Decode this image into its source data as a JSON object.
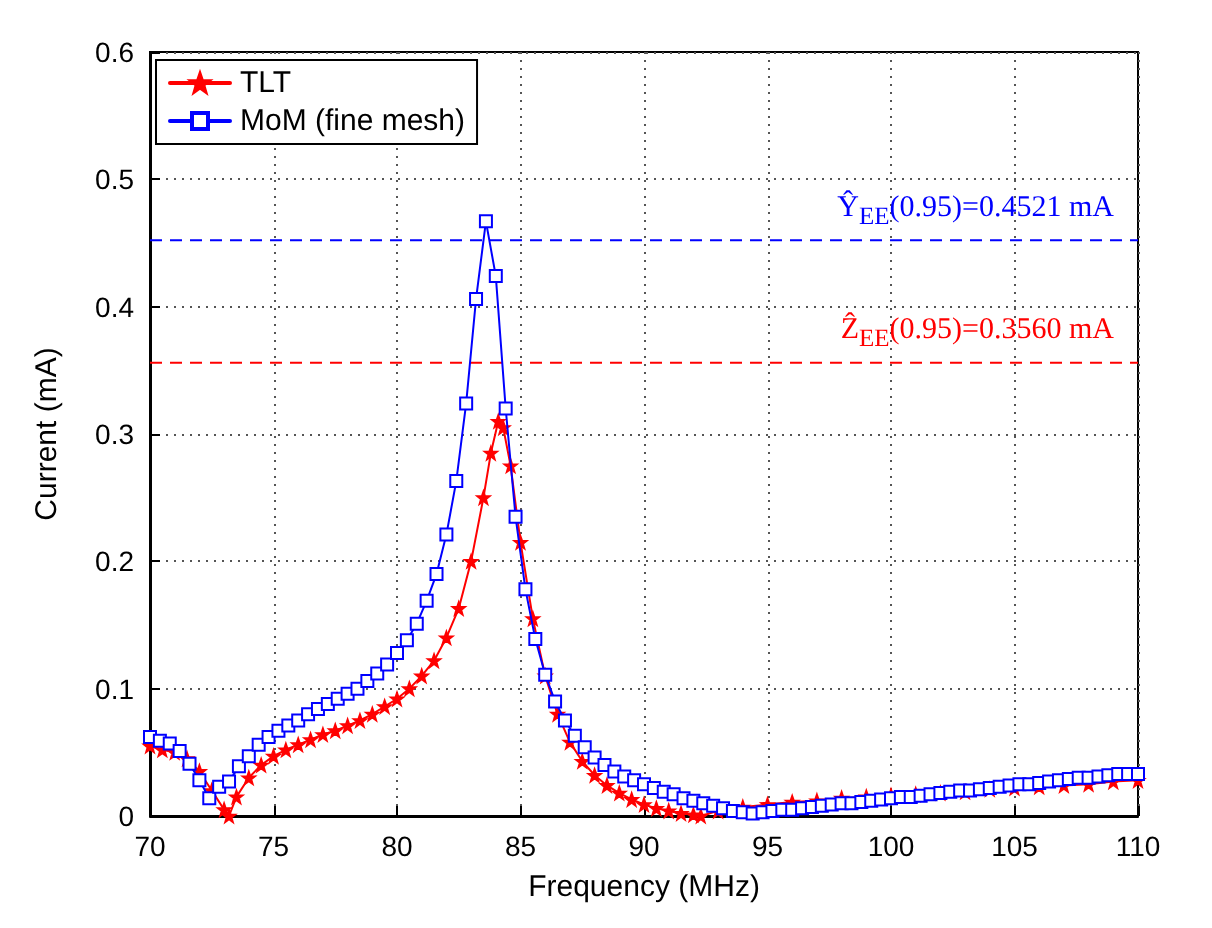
{
  "chart_data": {
    "type": "line",
    "xlabel": "Frequency (MHz)",
    "ylabel": "Current (mA)",
    "xlim": [
      70,
      110
    ],
    "ylim": [
      0,
      0.6
    ],
    "xticks": [
      70,
      75,
      80,
      85,
      90,
      95,
      100,
      105,
      110
    ],
    "yticks": [
      0,
      0.1,
      0.2,
      0.3,
      0.4,
      0.5,
      0.6
    ],
    "grid": true,
    "legend": "top left",
    "line_style": "solid",
    "series": [
      {
        "name": "TLT",
        "color": "#ff0000",
        "marker": "star",
        "x": [
          70,
          70.5,
          71,
          71.5,
          72,
          72.5,
          73,
          73.2,
          73.5,
          74,
          74.5,
          75,
          75.5,
          76,
          76.5,
          77,
          77.5,
          78,
          78.5,
          79,
          79.5,
          80,
          80.5,
          81,
          81.5,
          82,
          82.5,
          83,
          83.5,
          83.8,
          84.1,
          84.3,
          84.6,
          85,
          85.5,
          86,
          86.5,
          87,
          87.5,
          88,
          88.5,
          89,
          89.5,
          90,
          90.5,
          91,
          91.5,
          92,
          92.3,
          93,
          94,
          95,
          96,
          97,
          98,
          99,
          100,
          101,
          102,
          103,
          104,
          105,
          106,
          107,
          108,
          109,
          110
        ],
        "values": [
          0.055,
          0.052,
          0.05,
          0.045,
          0.035,
          0.02,
          0.005,
          0.0,
          0.015,
          0.03,
          0.04,
          0.047,
          0.052,
          0.056,
          0.06,
          0.064,
          0.067,
          0.071,
          0.075,
          0.08,
          0.086,
          0.092,
          0.1,
          0.11,
          0.122,
          0.14,
          0.163,
          0.2,
          0.25,
          0.285,
          0.31,
          0.305,
          0.275,
          0.215,
          0.155,
          0.11,
          0.08,
          0.058,
          0.043,
          0.032,
          0.024,
          0.018,
          0.013,
          0.009,
          0.006,
          0.004,
          0.002,
          0.001,
          0.0,
          0.004,
          0.007,
          0.009,
          0.011,
          0.012,
          0.014,
          0.015,
          0.016,
          0.017,
          0.018,
          0.019,
          0.021,
          0.022,
          0.023,
          0.024,
          0.025,
          0.027,
          0.028
        ]
      },
      {
        "name": "MoM (fine mesh)",
        "color": "#0000ff",
        "marker": "square",
        "x": [
          70,
          70.4,
          70.8,
          71.2,
          71.6,
          72,
          72.4,
          72.8,
          73.2,
          73.6,
          74,
          74.4,
          74.8,
          75.2,
          75.6,
          76,
          76.4,
          76.8,
          77.2,
          77.6,
          78,
          78.4,
          78.8,
          79.2,
          79.6,
          80,
          80.4,
          80.8,
          81.2,
          81.6,
          82,
          82.4,
          82.8,
          83.2,
          83.6,
          84,
          84.4,
          84.8,
          85.2,
          85.6,
          86,
          86.4,
          86.8,
          87.2,
          87.6,
          88,
          88.4,
          88.8,
          89.2,
          89.6,
          90,
          90.4,
          90.8,
          91.2,
          91.6,
          92,
          92.4,
          92.8,
          93.2,
          93.6,
          94,
          94.4,
          94.8,
          95.2,
          95.6,
          96,
          96.4,
          96.8,
          97.2,
          97.6,
          98,
          98.4,
          98.8,
          99.2,
          99.6,
          100,
          100.4,
          100.8,
          101.2,
          101.6,
          102,
          102.4,
          102.8,
          103.2,
          103.6,
          104,
          104.4,
          104.8,
          105.2,
          105.6,
          106,
          106.4,
          106.8,
          107.2,
          107.6,
          108,
          108.4,
          108.8,
          109.2,
          109.6,
          110
        ],
        "values": [
          0.062,
          0.059,
          0.057,
          0.051,
          0.041,
          0.028,
          0.014,
          0.023,
          0.027,
          0.039,
          0.047,
          0.056,
          0.062,
          0.067,
          0.071,
          0.075,
          0.08,
          0.084,
          0.088,
          0.092,
          0.096,
          0.1,
          0.106,
          0.112,
          0.119,
          0.128,
          0.138,
          0.151,
          0.169,
          0.19,
          0.221,
          0.263,
          0.324,
          0.406,
          0.467,
          0.424,
          0.32,
          0.235,
          0.178,
          0.139,
          0.111,
          0.09,
          0.075,
          0.063,
          0.054,
          0.046,
          0.04,
          0.035,
          0.031,
          0.028,
          0.025,
          0.022,
          0.019,
          0.017,
          0.014,
          0.012,
          0.01,
          0.008,
          0.006,
          0.004,
          0.003,
          0.002,
          0.003,
          0.004,
          0.005,
          0.005,
          0.006,
          0.007,
          0.008,
          0.009,
          0.01,
          0.01,
          0.011,
          0.012,
          0.013,
          0.014,
          0.015,
          0.015,
          0.016,
          0.017,
          0.018,
          0.019,
          0.02,
          0.02,
          0.021,
          0.022,
          0.023,
          0.024,
          0.025,
          0.025,
          0.026,
          0.027,
          0.028,
          0.029,
          0.03,
          0.03,
          0.031,
          0.032,
          0.033,
          0.033,
          0.033
        ]
      }
    ],
    "ref_lines": [
      {
        "axis": "y",
        "value": 0.4521,
        "label": "Ŷ$_{EE}$(0.95)=0.4521 mA",
        "color": "#0000ff",
        "line_style": "dashed"
      },
      {
        "axis": "y",
        "value": 0.356,
        "label": "Ẑ$_{EE}$(0.95)=0.3560 mA",
        "color": "#ff0000",
        "line_style": "dashed"
      }
    ]
  }
}
